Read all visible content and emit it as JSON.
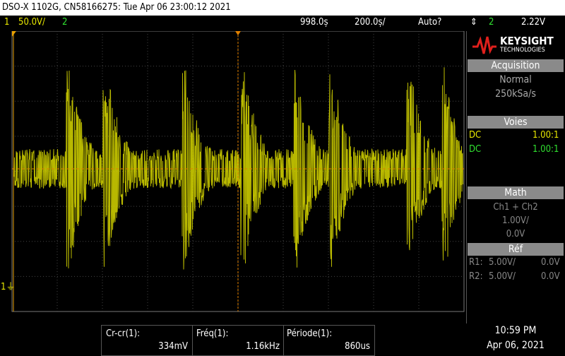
{
  "header": {
    "title": "DSO-X 1102G, CN58166275: Tue Apr 06 23:00:12 2021"
  },
  "channel_bar": {
    "ch1": "1",
    "ch1_scale": "50.0V/",
    "ch2": "2",
    "delay": "998.0ș",
    "timebase": "200.0ș/",
    "trigger_mode": "Auto?",
    "trigger_source": "2",
    "trigger_level": "2.22V"
  },
  "brand": {
    "name": "KEYSIGHT",
    "sub": "TECHNOLOGIES"
  },
  "acquisition": {
    "header": "Acquisition",
    "mode": "Normal",
    "rate": "250kSa/s"
  },
  "channels": {
    "header": "Voies",
    "rows": [
      {
        "coupling": "DC",
        "probe": "1.00:1"
      },
      {
        "coupling": "DC",
        "probe": "1.00:1"
      }
    ]
  },
  "math": {
    "header": "Math",
    "function": "Ch1 + Ch2",
    "scale": "1.00V/",
    "offset": "0.0V"
  },
  "ref": {
    "header": "Réf",
    "rows": [
      {
        "name": "R1:",
        "scale": "5.00V/",
        "offset": "0.0V"
      },
      {
        "name": "R2:",
        "scale": "5.00V/",
        "offset": "0.0V"
      }
    ]
  },
  "measurements": [
    {
      "label": "Cr-cr(1):",
      "value": "334mV"
    },
    {
      "label": "Fréq(1):",
      "value": "1.16kHz"
    },
    {
      "label": "Période(1):",
      "value": "860us"
    }
  ],
  "clock": {
    "time": "10:59 PM",
    "date": "Apr 06, 2021"
  }
}
